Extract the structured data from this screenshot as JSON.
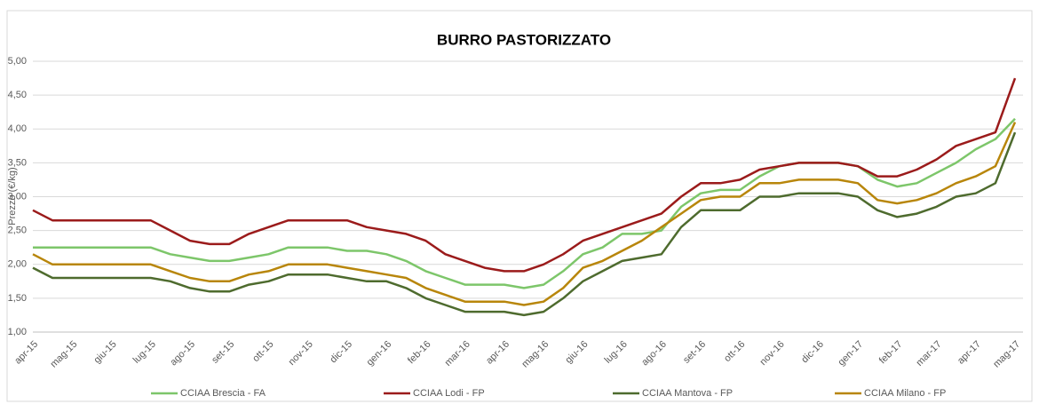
{
  "chart_data": {
    "type": "line",
    "title": "BURRO PASTORIZZATO",
    "y_label": "Prezzo (€/kg)",
    "categories": [
      "apr-15",
      null,
      "mag-15",
      null,
      "giu-15",
      null,
      "lug-15",
      null,
      "ago-15",
      null,
      "set-15",
      null,
      "ott-15",
      null,
      "nov-15",
      null,
      "dic-15",
      null,
      "gen-16",
      null,
      "feb-16",
      null,
      "mar-16",
      null,
      "apr-16",
      null,
      "mag-16",
      null,
      "giu-16",
      null,
      "lug-16",
      null,
      "ago-16",
      null,
      "set-16",
      null,
      "ott-16",
      null,
      "nov-16",
      null,
      "dic-16",
      null,
      "gen-17",
      null,
      "feb-17",
      null,
      "mar-17",
      null,
      "apr-17",
      null,
      "mag-17"
    ],
    "series": [
      {
        "name": "CCIAA Brescia - FA",
        "color": "#7dc66a",
        "values": [
          2.25,
          2.25,
          2.25,
          2.25,
          2.25,
          2.25,
          2.25,
          2.15,
          2.1,
          2.05,
          2.05,
          2.1,
          2.15,
          2.25,
          2.25,
          2.25,
          2.2,
          2.2,
          2.15,
          2.05,
          1.9,
          1.8,
          1.7,
          1.7,
          1.7,
          1.65,
          1.7,
          1.9,
          2.15,
          2.25,
          2.45,
          2.45,
          2.5,
          2.85,
          3.05,
          3.1,
          3.1,
          3.3,
          3.45,
          3.5,
          3.5,
          3.5,
          3.45,
          3.25,
          3.15,
          3.2,
          3.35,
          3.5,
          3.7,
          3.85,
          4.15
        ]
      },
      {
        "name": "CCIAA Lodi - FP",
        "color": "#9b1b1b",
        "values": [
          2.8,
          2.65,
          2.65,
          2.65,
          2.65,
          2.65,
          2.65,
          2.5,
          2.35,
          2.3,
          2.3,
          2.45,
          2.55,
          2.65,
          2.65,
          2.65,
          2.65,
          2.55,
          2.5,
          2.45,
          2.35,
          2.15,
          2.05,
          1.95,
          1.9,
          1.9,
          2.0,
          2.15,
          2.35,
          2.45,
          2.55,
          2.65,
          2.75,
          3.0,
          3.2,
          3.2,
          3.25,
          3.4,
          3.45,
          3.5,
          3.5,
          3.5,
          3.45,
          3.3,
          3.3,
          3.4,
          3.55,
          3.75,
          3.85,
          3.95,
          4.75
        ]
      },
      {
        "name": "CCIAA Mantova - FP",
        "color": "#4e6b2e",
        "values": [
          1.95,
          1.8,
          1.8,
          1.8,
          1.8,
          1.8,
          1.8,
          1.75,
          1.65,
          1.6,
          1.6,
          1.7,
          1.75,
          1.85,
          1.85,
          1.85,
          1.8,
          1.75,
          1.75,
          1.65,
          1.5,
          1.4,
          1.3,
          1.3,
          1.3,
          1.25,
          1.3,
          1.5,
          1.75,
          1.9,
          2.05,
          2.1,
          2.15,
          2.55,
          2.8,
          2.8,
          2.8,
          3.0,
          3.0,
          3.05,
          3.05,
          3.05,
          3.0,
          2.8,
          2.7,
          2.75,
          2.85,
          3.0,
          3.05,
          3.2,
          3.95
        ]
      },
      {
        "name": "CCIAA Milano - FP",
        "color": "#b8860b",
        "values": [
          2.15,
          2.0,
          2.0,
          2.0,
          2.0,
          2.0,
          2.0,
          1.9,
          1.8,
          1.75,
          1.75,
          1.85,
          1.9,
          2.0,
          2.0,
          2.0,
          1.95,
          1.9,
          1.85,
          1.8,
          1.65,
          1.55,
          1.45,
          1.45,
          1.45,
          1.4,
          1.45,
          1.65,
          1.95,
          2.05,
          2.2,
          2.35,
          2.55,
          2.75,
          2.95,
          3.0,
          3.0,
          3.2,
          3.2,
          3.25,
          3.25,
          3.25,
          3.2,
          2.95,
          2.9,
          2.95,
          3.05,
          3.2,
          3.3,
          3.45,
          4.1
        ]
      }
    ],
    "ylim": [
      1,
      5
    ],
    "yticks": [
      {
        "value": 1,
        "label": "1,00"
      },
      {
        "value": 1.5,
        "label": "1,50"
      },
      {
        "value": 2,
        "label": "2,00"
      },
      {
        "value": 2.5,
        "label": "2,50"
      },
      {
        "value": 3,
        "label": "3,00"
      },
      {
        "value": 3.5,
        "label": "3,50"
      },
      {
        "value": 4,
        "label": "4,00"
      },
      {
        "value": 4.5,
        "label": "4,50"
      },
      {
        "value": 5,
        "label": "5,00"
      }
    ],
    "grid": true,
    "legend": "bottom"
  }
}
